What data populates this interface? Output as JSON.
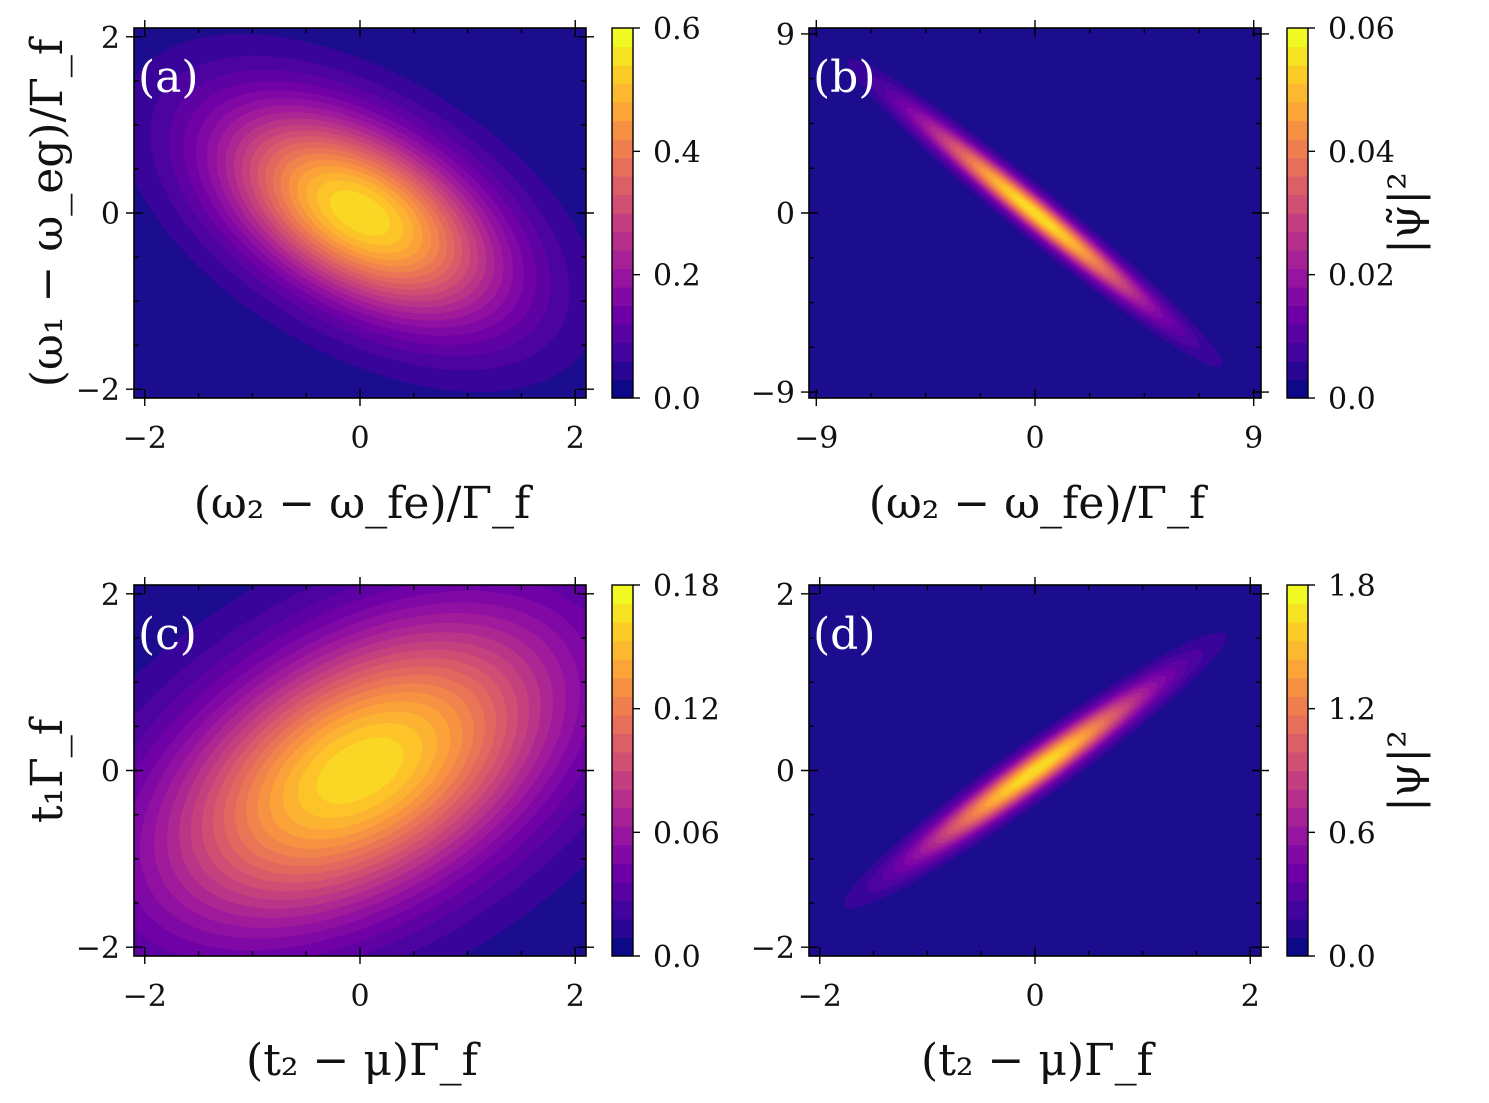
{
  "colormap": [
    "#0d0887",
    "#46039f",
    "#7201a8",
    "#9c179e",
    "#bd3786",
    "#d8576b",
    "#ed7953",
    "#fb9f3a",
    "#fdca26",
    "#f0f921"
  ],
  "background_color": "#1c0c8e",
  "chart_data": [
    {
      "type": "heatmap",
      "panel": "(a)",
      "x": {
        "label": "(ω₂ − ω_fe)/Γ_f",
        "range": [
          -2.1,
          2.1
        ],
        "ticks": [
          -2,
          0,
          2
        ],
        "tick_labels": [
          "−2",
          "0",
          "2"
        ]
      },
      "y": {
        "label": "(ω₁ − ω_eg)/Γ_f",
        "range": [
          -2.1,
          2.1
        ],
        "ticks": [
          -2,
          0,
          2
        ],
        "tick_labels": [
          "−2",
          "0",
          "2"
        ]
      },
      "colorbar": {
        "label": "",
        "range": [
          0,
          0.6
        ],
        "ticks": [
          "0.0",
          "0.2",
          "0.4",
          "0.6"
        ],
        "tick_values": [
          0,
          0.2,
          0.4,
          0.6
        ]
      },
      "distribution": {
        "kind": "gaussian",
        "center": [
          0,
          0
        ],
        "peak": 0.6,
        "sigma_major": 1.05,
        "sigma_minor": 0.6,
        "angle_deg": -35
      }
    },
    {
      "type": "heatmap",
      "panel": "(b)",
      "x": {
        "label": "(ω₂ − ω_fe)/Γ_f",
        "range": [
          -9.3,
          9.3
        ],
        "ticks": [
          -9,
          0,
          9
        ],
        "tick_labels": [
          "−9",
          "0",
          "9"
        ]
      },
      "y": {
        "label": "",
        "range": [
          -9.3,
          9.3
        ],
        "ticks": [
          -9,
          0,
          9
        ],
        "tick_labels": [
          "−9",
          "0",
          "9"
        ]
      },
      "colorbar": {
        "label": "|ψ̃|²",
        "range": [
          0,
          0.06
        ],
        "ticks": [
          "0.0",
          "0.02",
          "0.04",
          "0.06"
        ],
        "tick_values": [
          0,
          0.02,
          0.04,
          0.06
        ]
      },
      "distribution": {
        "kind": "gaussian",
        "center": [
          0,
          0
        ],
        "peak": 0.06,
        "sigma_major": 4.4,
        "sigma_minor": 0.45,
        "angle_deg": -45
      }
    },
    {
      "type": "heatmap",
      "panel": "(c)",
      "x": {
        "label": "(t₂ − μ)Γ_f",
        "range": [
          -2.1,
          2.1
        ],
        "ticks": [
          -2,
          0,
          2
        ],
        "tick_labels": [
          "−2",
          "0",
          "2"
        ]
      },
      "y": {
        "label": "t₁Γ_f",
        "range": [
          -2.1,
          2.1
        ],
        "ticks": [
          -2,
          0,
          2
        ],
        "tick_labels": [
          "−2",
          "0",
          "2"
        ]
      },
      "colorbar": {
        "label": "",
        "range": [
          0,
          0.18
        ],
        "ticks": [
          "0.0",
          "0.06",
          "0.12",
          "0.18"
        ],
        "tick_values": [
          0,
          0.06,
          0.12,
          0.18
        ]
      },
      "distribution": {
        "kind": "gaussian",
        "center": [
          0,
          0
        ],
        "peak": 0.18,
        "sigma_major": 1.5,
        "sigma_minor": 0.9,
        "angle_deg": 35
      }
    },
    {
      "type": "heatmap",
      "panel": "(d)",
      "x": {
        "label": "(t₂ − μ)Γ_f",
        "range": [
          -2.1,
          2.1
        ],
        "ticks": [
          -2,
          0,
          2
        ],
        "tick_labels": [
          "−2",
          "0",
          "2"
        ]
      },
      "y": {
        "label": "",
        "range": [
          -2.1,
          2.1
        ],
        "ticks": [
          -2,
          0,
          2
        ],
        "tick_labels": [
          "−2",
          "0",
          "2"
        ]
      },
      "colorbar": {
        "label": "|ψ|²",
        "range": [
          0,
          1.8
        ],
        "ticks": [
          "0.0",
          "0.6",
          "1.2",
          "1.8"
        ],
        "tick_values": [
          0,
          0.6,
          1.2,
          1.8
        ]
      },
      "distribution": {
        "kind": "gaussian",
        "center": [
          0,
          0
        ],
        "peak": 1.8,
        "sigma_major": 0.95,
        "sigma_minor": 0.12,
        "angle_deg": 41
      }
    }
  ]
}
